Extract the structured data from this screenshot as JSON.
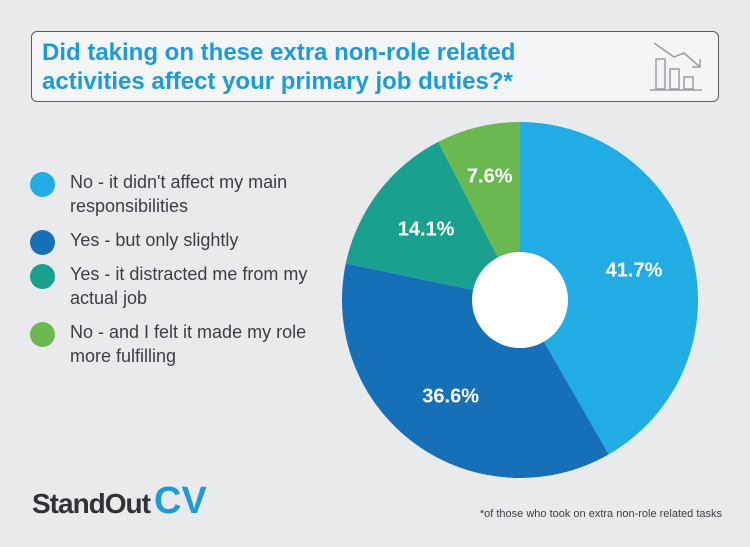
{
  "header": {
    "title": "Did taking on these extra non-role related activities affect your primary job duties?*",
    "icon": "declining-bar-chart-icon"
  },
  "chart_data": {
    "type": "pie",
    "donut": true,
    "categories": [
      "No - it didn't affect my main responsibilities",
      "Yes - but only slightly",
      "Yes - it distracted me from my actual job",
      "No - and I felt it made my role more fulfilling"
    ],
    "values": [
      41.7,
      36.6,
      14.1,
      7.6
    ],
    "value_labels": [
      "41.7%",
      "36.6%",
      "14.1%",
      "7.6%"
    ],
    "colors": [
      "#22ace4",
      "#1670b8",
      "#1aa08e",
      "#6ab84f"
    ],
    "legend_position": "left"
  },
  "footer": {
    "logo_text": "StandOut",
    "logo_accent": "CV",
    "footnote": "*of those who took on extra non-role related tasks"
  }
}
